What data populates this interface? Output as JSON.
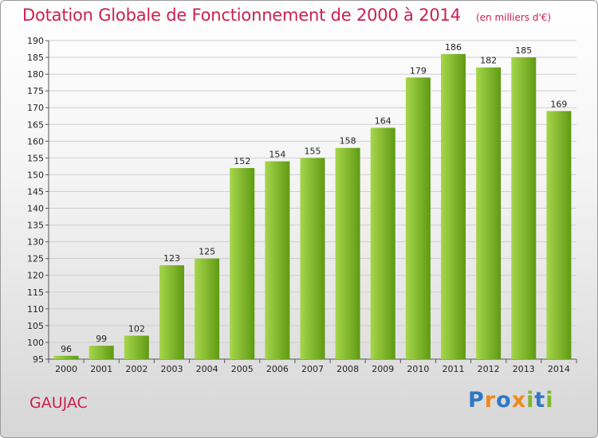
{
  "header": {
    "title": "Dotation Globale de Fonctionnement de 2000 à 2014",
    "unit": "(en milliers d'€)"
  },
  "footer": {
    "commune": "GAUJAC",
    "logo": "Proxiti"
  },
  "colors": {
    "title": "#cc1f4e",
    "bar_light": "#a6d64a",
    "bar_dark": "#5f9a14",
    "grid": "#cfcfcf"
  },
  "chart_data": {
    "type": "bar",
    "title": "Dotation Globale de Fonctionnement de 2000 à 2014",
    "xlabel": "",
    "ylabel": "",
    "unit": "milliers d'€",
    "categories": [
      "2000",
      "2001",
      "2002",
      "2003",
      "2004",
      "2005",
      "2006",
      "2007",
      "2008",
      "2009",
      "2010",
      "2011",
      "2012",
      "2013",
      "2014"
    ],
    "values": [
      96,
      99,
      102,
      123,
      125,
      152,
      154,
      155,
      158,
      164,
      179,
      186,
      182,
      185,
      169
    ],
    "ylim": [
      95,
      190
    ],
    "yticks": [
      95,
      100,
      105,
      110,
      115,
      120,
      125,
      130,
      135,
      140,
      145,
      150,
      155,
      160,
      165,
      170,
      175,
      180,
      185,
      190
    ],
    "grid": true
  }
}
